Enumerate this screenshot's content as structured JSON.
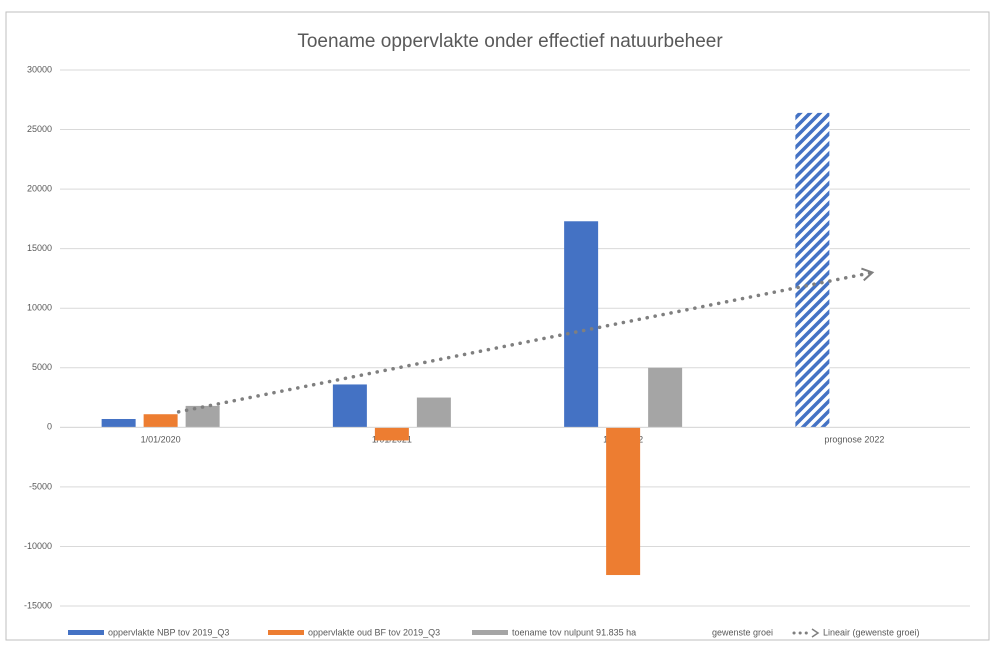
{
  "chart_data": {
    "type": "bar",
    "title": "Toename oppervlakte onder effectief natuurbeheer",
    "categories": [
      "1/01/2020",
      "1/01/2021",
      "1/01/2022",
      "prognose 2022"
    ],
    "series": [
      {
        "name": "oppervlakte NBP tov 2019_Q3",
        "color": "#4472c4",
        "values": [
          700,
          3600,
          17300,
          null
        ]
      },
      {
        "name": "oppervlakte oud BF tov 2019_Q3",
        "color": "#ed7d31",
        "values": [
          1100,
          -1100,
          -12400,
          null
        ]
      },
      {
        "name": "toename tov nulpunt 91.835 ha",
        "color": "#a5a5a5",
        "values": [
          1800,
          2500,
          5000,
          null
        ]
      },
      {
        "name": "gewenste groei",
        "color": "#4472c4",
        "pattern": "hatch",
        "values": [
          null,
          null,
          null,
          26400
        ]
      }
    ],
    "trendline": {
      "name": "Lineair (gewenste groei)",
      "color": "#7f7f7f",
      "values": [
        1300,
        5200,
        9100,
        13000
      ]
    },
    "ylim": [
      -15000,
      30000
    ],
    "yticks": [
      -15000,
      -10000,
      -5000,
      0,
      5000,
      10000,
      15000,
      20000,
      25000,
      30000
    ],
    "grid": true
  }
}
